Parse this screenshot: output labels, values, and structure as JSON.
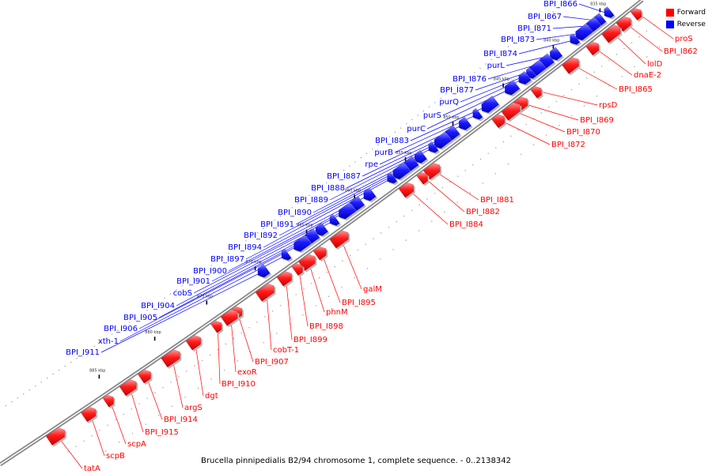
{
  "legend": {
    "forward_label": "Forward",
    "reverse_label": "Reverse",
    "forward_color": "#ff0000",
    "reverse_color": "#0000ff"
  },
  "caption": "Brucella pinnipedialis B2/94 chromosome 1, complete sequence. - 0..2138342",
  "scale_ticks": [
    "835 kbp",
    "840 kbp",
    "845 kbp",
    "850 kbp",
    "855 kbp",
    "860 kbp",
    "865 kbp",
    "870 kbp",
    "875 kbp",
    "880 kbp",
    "885 kbp"
  ],
  "forward_genes": [
    "proS",
    "BPI_I862",
    "lolD",
    "dnaE-2",
    "BPI_I865",
    "rpsD",
    "BPI_I869",
    "BPI_I870",
    "BPI_I872",
    "BPI_I881",
    "BPI_I882",
    "BPI_I884",
    "galM",
    "BPI_I895",
    "phnM",
    "BPI_I898",
    "BPI_I899",
    "cobT-1",
    "BPI_I907",
    "exoR",
    "BPI_I910",
    "dgt",
    "argS",
    "BPI_I914",
    "BPI_I915",
    "scpA",
    "scpB",
    "tatA"
  ],
  "reverse_genes": [
    "BPI_I866",
    "BPI_I867",
    "BPI_I871",
    "BPI_I873",
    "BPI_I874",
    "purL",
    "BPI_I876",
    "BPI_I877",
    "purQ",
    "purS",
    "purC",
    "BPI_I883",
    "purB",
    "rpe",
    "BPI_I887",
    "BPI_I888",
    "BPI_I889",
    "BPI_I890",
    "BPI_I891",
    "BPI_I892",
    "BPI_I894",
    "BPI_I897",
    "BPI_I900",
    "BPI_I901",
    "cobS",
    "BPI_I904",
    "BPI_I905",
    "BPI_I906",
    "xth-1",
    "BPI_I911"
  ]
}
